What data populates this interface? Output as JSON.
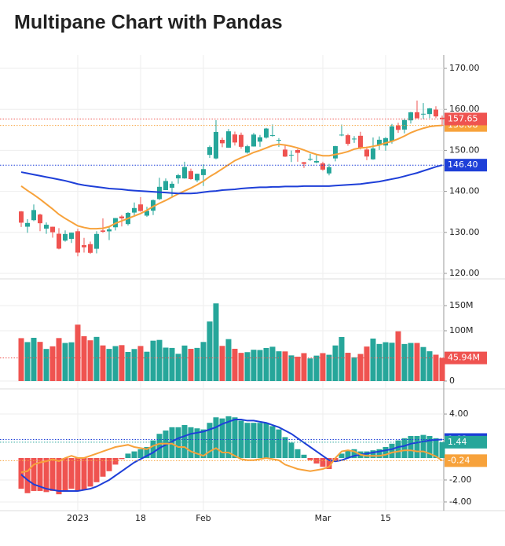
{
  "chart_data": [
    {
      "type": "candlestick",
      "title": "Multipane Chart with Pandas",
      "categories": [
        null,
        null,
        null,
        null,
        null,
        null,
        null,
        null,
        null,
        "2023",
        null,
        null,
        null,
        null,
        null,
        null,
        null,
        null,
        null,
        "18",
        null,
        null,
        null,
        null,
        null,
        null,
        null,
        null,
        null,
        "Feb",
        null,
        null,
        null,
        null,
        null,
        null,
        null,
        null,
        null,
        null,
        null,
        null,
        null,
        null,
        null,
        null,
        null,
        null,
        "Mar",
        null,
        null,
        null,
        null,
        null,
        null,
        null,
        null,
        null,
        "15",
        null,
        null,
        null,
        null,
        null,
        null,
        null,
        null,
        null
      ],
      "open": [
        135.11,
        131.39,
        132.98,
        134.35,
        130.92,
        131.38,
        129.67,
        127.99,
        128.41,
        130.28,
        126.89,
        127.13,
        126.01,
        130.47,
        130.26,
        131.25,
        133.88,
        132.03,
        134.83,
        136.82,
        134.08,
        135.28,
        138.12,
        140.31,
        140.89,
        143.17,
        143.16,
        144.96,
        142.7,
        143.97,
        148.9,
        148.03,
        152.57,
        150.64,
        153.88,
        153.78,
        149.46,
        150.95,
        152.12,
        153.11,
        153.51,
        152.35,
        150.2,
        148.87,
        150.09,
        147.11,
        147.71,
        147.05,
        146.83,
        144.38,
        148.04,
        153.79,
        153.7,
        152.81,
        153.56,
        150.21,
        147.81,
        151.28,
        151.19,
        152.16,
        156.08,
        155.07,
        157.32,
        159.3,
        158.83,
        158.86,
        159.94,
        157.97
      ],
      "high": [
        135.2,
        133.25,
        136.81,
        134.56,
        132.42,
        131.41,
        131.03,
        130.48,
        129.95,
        130.9,
        128.66,
        127.77,
        130.29,
        133.41,
        131.26,
        133.51,
        134.26,
        134.92,
        137.29,
        138.61,
        136.25,
        138.02,
        143.32,
        143.16,
        142.43,
        144.25,
        147.23,
        145.55,
        144.34,
        146.61,
        151.18,
        157.38,
        153.1,
        155.23,
        154.58,
        154.33,
        151.34,
        154.26,
        153.77,
        155.5,
        156.33,
        153.0,
        151.3,
        149.95,
        150.34,
        147.19,
        149.17,
        149.08,
        147.23,
        146.71,
        151.11,
        156.3,
        154.03,
        153.47,
        154.54,
        150.94,
        153.14,
        153.4,
        153.25,
        156.46,
        156.74,
        157.82,
        159.4,
        162.14,
        161.55,
        160.34,
        160.77,
        158.49
      ],
      "low": [
        131.32,
        129.89,
        132.75,
        130.3,
        129.64,
        128.72,
        125.87,
        127.73,
        127.43,
        124.17,
        125.08,
        124.76,
        124.89,
        129.89,
        128.12,
        130.46,
        131.44,
        131.66,
        134.13,
        135.03,
        133.77,
        134.22,
        137.9,
        140.3,
        138.81,
        141.9,
        143.08,
        142.85,
        142.28,
        141.32,
        148.17,
        147.83,
        150.78,
        150.64,
        151.17,
        150.42,
        149.22,
        150.92,
        150.86,
        152.88,
        153.35,
        150.85,
        148.41,
        147.16,
        147.24,
        145.72,
        147.45,
        146.83,
        145.01,
        143.9,
        147.33,
        153.46,
        151.13,
        151.83,
        150.23,
        147.61,
        147.7,
        150.1,
        149.92,
        151.64,
        154.28,
        154.15,
        156.54,
        157.81,
        157.68,
        157.85,
        157.87,
        155.98
      ],
      "close": [
        132.37,
        132.3,
        135.45,
        132.23,
        131.86,
        130.03,
        126.04,
        129.61,
        129.93,
        125.07,
        126.36,
        125.02,
        129.62,
        130.15,
        130.73,
        133.49,
        133.41,
        134.76,
        135.94,
        135.21,
        135.27,
        137.87,
        141.11,
        142.53,
        141.86,
        143.96,
        145.93,
        143.0,
        144.29,
        145.43,
        150.82,
        154.5,
        151.73,
        154.65,
        151.92,
        150.87,
        151.01,
        153.85,
        153.2,
        155.33,
        153.71,
        152.55,
        148.48,
        148.91,
        149.4,
        146.71,
        147.92,
        147.41,
        145.31,
        145.91,
        151.03,
        153.83,
        151.6,
        152.87,
        150.59,
        148.5,
        150.47,
        152.59,
        152.99,
        155.85,
        155.0,
        157.4,
        159.28,
        157.83,
        158.93,
        160.25,
        158.28,
        157.65
      ],
      "last_value_label": "157.65",
      "up_color": "#26a69a",
      "down_color": "#ef5350",
      "series": [
        {
          "color": "#f7a23b",
          "last_value_label": "156.08",
          "values": [
            141.3,
            140.2,
            139.2,
            138.1,
            136.9,
            135.7,
            134.4,
            133.4,
            132.5,
            131.6,
            131.2,
            130.9,
            130.9,
            131.0,
            131.4,
            132.2,
            132.8,
            133.4,
            134.0,
            134.6,
            135.4,
            136.3,
            137.1,
            137.8,
            138.6,
            139.4,
            140.1,
            140.8,
            141.6,
            142.5,
            143.6,
            144.5,
            145.5,
            146.5,
            147.5,
            148.2,
            148.8,
            149.5,
            150.0,
            150.6,
            151.2,
            151.5,
            151.3,
            151.0,
            150.6,
            150.1,
            149.5,
            149.0,
            148.7,
            148.7,
            149.0,
            149.3,
            149.7,
            150.3,
            150.6,
            150.7,
            151.0,
            151.3,
            151.8,
            152.2,
            152.8,
            153.5,
            154.3,
            154.9,
            155.4,
            155.8,
            156.0,
            156.08
          ]
        },
        {
          "color": "#1e3fd8",
          "last_value_label": "146.40",
          "values": [
            144.7,
            144.4,
            144.1,
            143.8,
            143.5,
            143.2,
            142.9,
            142.6,
            142.2,
            141.8,
            141.5,
            141.3,
            141.1,
            140.9,
            140.7,
            140.6,
            140.5,
            140.3,
            140.2,
            140.1,
            140.0,
            139.9,
            139.8,
            139.7,
            139.6,
            139.5,
            139.5,
            139.5,
            139.6,
            139.8,
            140.0,
            140.1,
            140.3,
            140.4,
            140.5,
            140.7,
            140.8,
            140.9,
            141.0,
            141.0,
            141.1,
            141.1,
            141.2,
            141.2,
            141.2,
            141.3,
            141.3,
            141.3,
            141.3,
            141.3,
            141.4,
            141.5,
            141.6,
            141.7,
            141.8,
            142.0,
            142.2,
            142.4,
            142.7,
            143.0,
            143.3,
            143.7,
            144.1,
            144.5,
            145.0,
            145.5,
            146.0,
            146.4
          ]
        }
      ],
      "ylim": [
        118.66,
        173.26
      ],
      "yticks": [
        {
          "value": 120,
          "label": "120.00"
        },
        {
          "value": 130,
          "label": "130.00"
        },
        {
          "value": 140,
          "label": "140.00"
        },
        {
          "value": 150,
          "label": "150.00"
        },
        {
          "value": 160,
          "label": "160.00"
        },
        {
          "value": 170,
          "label": "170.00"
        }
      ],
      "grid": true
    },
    {
      "type": "volume",
      "values": [
        85.25,
        77.43,
        85.93,
        77.85,
        63.81,
        69.01,
        85.44,
        75.7,
        77.03,
        112.12,
        89.11,
        80.96,
        87.75,
        70.79,
        63.9,
        69.46,
        71.38,
        57.81,
        63.65,
        69.67,
        58.28,
        80.22,
        81.76,
        66.44,
        65.8,
        54.11,
        70.56,
        64.02,
        65.87,
        77.66,
        118.34,
        154.36,
        69.86,
        83.32,
        64.12,
        56.01,
        57.45,
        62.2,
        61.71,
        65.67,
        68.17,
        59.14,
        58.87,
        51.01,
        48.39,
        55.47,
        44.99,
        50.55,
        55.48,
        52.24,
        70.73,
        87.56,
        56.18,
        47.2,
        53.83,
        68.57,
        84.46,
        73.7,
        77.17,
        76.16,
        98.94,
        73.64,
        75.7,
        75.7,
        67.62,
        59.2,
        52.39,
        45.94
      ],
      "last_value_label": "45.94M",
      "ylim": [
        -15.6,
        203.1
      ],
      "yticks": [
        0,
        {
          "value": 100,
          "label": "100M"
        },
        {
          "value": 150,
          "label": "150M"
        }
      ],
      "grid": true
    },
    {
      "type": "macd",
      "values": [
        -2.8,
        -3.2,
        -3.0,
        -3.0,
        -3.1,
        -3.0,
        -3.3,
        -3.0,
        -2.8,
        -3.0,
        -2.9,
        -2.6,
        -2.2,
        -1.7,
        -1.2,
        -0.6,
        -0.1,
        0.4,
        0.6,
        0.8,
        1.0,
        1.6,
        2.2,
        2.5,
        2.8,
        2.8,
        3.0,
        2.8,
        2.7,
        2.6,
        3.2,
        3.7,
        3.6,
        3.8,
        3.7,
        3.4,
        3.2,
        3.2,
        3.2,
        3.2,
        2.9,
        2.6,
        1.9,
        1.4,
        0.8,
        0.3,
        -0.2,
        -0.5,
        -0.8,
        -1.0,
        -0.3,
        0.4,
        0.7,
        0.8,
        0.6,
        0.6,
        0.7,
        0.8,
        1.0,
        1.3,
        1.6,
        1.8,
        2.0,
        2.0,
        2.1,
        2.0,
        1.8,
        1.44
      ],
      "last_value_label": "1.44",
      "up_color": "#26a69a",
      "down_color": "#ef5350",
      "series": [
        {
          "color": "#1e3fd8",
          "last_value_label": "1.68",
          "values": [
            -1.5,
            -2.0,
            -2.4,
            -2.6,
            -2.8,
            -2.9,
            -3.0,
            -3.0,
            -3.0,
            -3.0,
            -2.9,
            -2.8,
            -2.6,
            -2.3,
            -2.0,
            -1.6,
            -1.2,
            -0.8,
            -0.4,
            -0.1,
            0.2,
            0.5,
            0.9,
            1.2,
            1.5,
            1.8,
            2.0,
            2.2,
            2.3,
            2.4,
            2.6,
            2.8,
            3.1,
            3.3,
            3.5,
            3.5,
            3.4,
            3.4,
            3.3,
            3.2,
            3.0,
            2.8,
            2.5,
            2.2,
            1.8,
            1.4,
            1.0,
            0.6,
            0.2,
            -0.2,
            -0.3,
            -0.2,
            0.0,
            0.2,
            0.3,
            0.4,
            0.5,
            0.6,
            0.7,
            0.8,
            1.0,
            1.1,
            1.3,
            1.4,
            1.5,
            1.6,
            1.65,
            1.68
          ]
        },
        {
          "color": "#f7a23b",
          "last_value_label": "-0.24",
          "values": [
            -1.3,
            -1.2,
            -0.6,
            -0.4,
            -0.3,
            -0.1,
            -0.3,
            0.0,
            0.2,
            0.0,
            0.0,
            0.2,
            0.4,
            0.6,
            0.8,
            1.0,
            1.1,
            1.2,
            1.0,
            0.9,
            0.8,
            1.1,
            1.3,
            1.3,
            1.3,
            1.0,
            1.0,
            0.6,
            0.4,
            0.2,
            0.6,
            0.9,
            0.5,
            0.5,
            0.2,
            -0.1,
            -0.2,
            -0.2,
            -0.1,
            0.0,
            -0.1,
            -0.2,
            -0.6,
            -0.8,
            -1.0,
            -1.1,
            -1.2,
            -1.1,
            -1.0,
            -0.8,
            0.0,
            0.6,
            0.7,
            0.6,
            0.3,
            0.2,
            0.2,
            0.2,
            0.3,
            0.5,
            0.6,
            0.7,
            0.7,
            0.6,
            0.6,
            0.4,
            0.15,
            -0.24
          ]
        }
      ],
      "ylim": [
        -4.79,
        6.29
      ],
      "yticks": [
        {
          "value": -4,
          "label": "-4.00"
        },
        {
          "value": -2,
          "label": "-2.00"
        },
        {
          "value": 4,
          "label": "4.00"
        }
      ],
      "grid": true
    }
  ]
}
